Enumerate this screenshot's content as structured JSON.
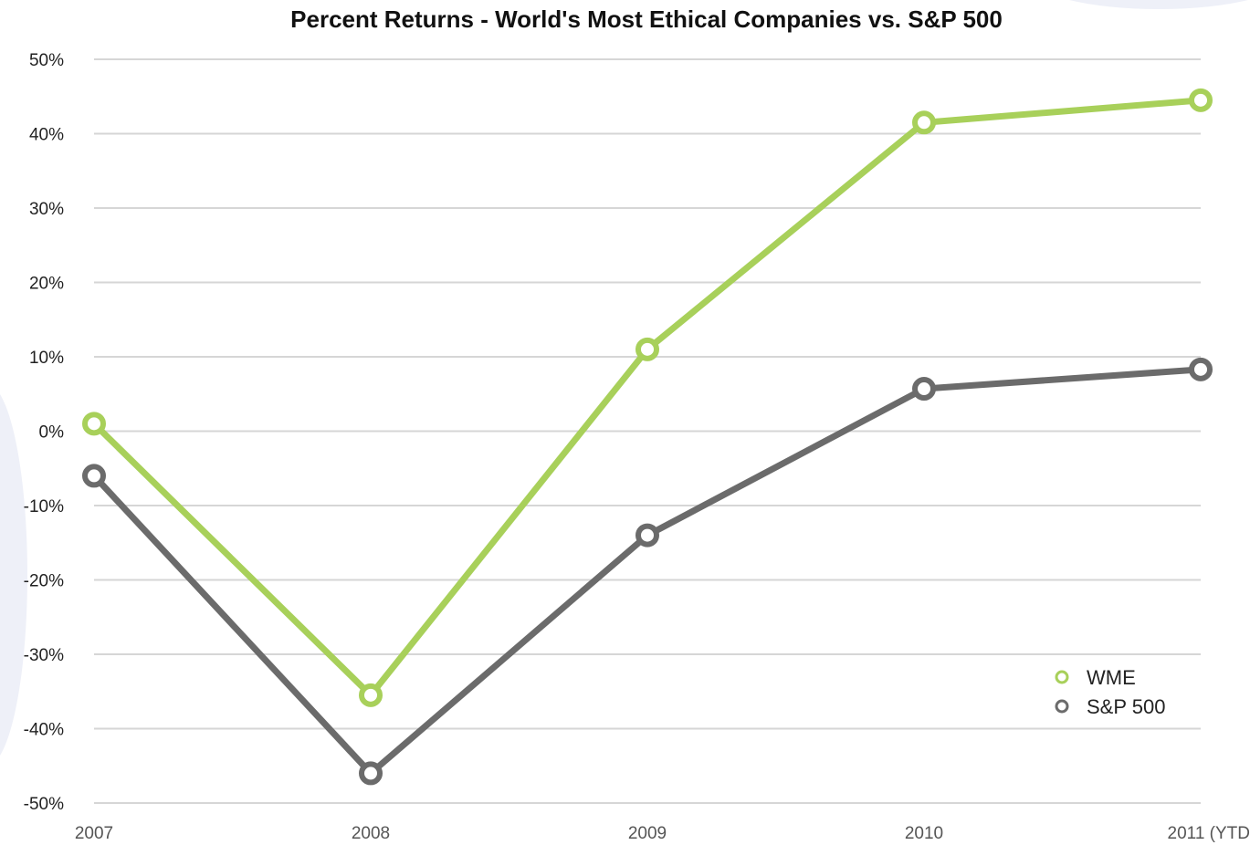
{
  "chart_data": {
    "type": "line",
    "title": "Percent Returns - World's Most Ethical Companies vs. S&P 500",
    "xlabel": "",
    "ylabel": "",
    "categories": [
      "2007",
      "2008",
      "2009",
      "2010",
      "2011 (YTD"
    ],
    "ylim": [
      -50,
      50
    ],
    "y_ticks": [
      50,
      40,
      30,
      20,
      10,
      0,
      -10,
      -20,
      -30,
      -40,
      -50
    ],
    "y_tick_labels": [
      "50%",
      "40%",
      "30%",
      "20%",
      "10%",
      "0%",
      "-10%",
      "-20%",
      "-30%",
      "-40%",
      "-50%"
    ],
    "grid": true,
    "legend_position": "bottom-right",
    "series": [
      {
        "name": "WME",
        "values": [
          1,
          -35.5,
          11,
          41.5,
          44.5
        ],
        "color": "#a8d05a"
      },
      {
        "name": "S&P 500",
        "values": [
          -6,
          -46,
          -14,
          5.7,
          8.3
        ],
        "color": "#6b6b6b"
      }
    ]
  },
  "colors": {
    "grid": "#d6d6d6",
    "background": "#ffffff"
  }
}
